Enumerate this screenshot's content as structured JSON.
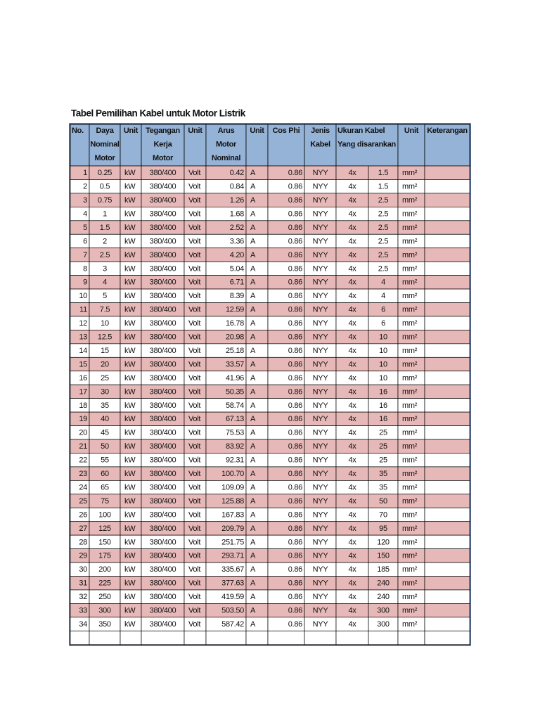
{
  "title": "Tabel Pemilihan Kabel untuk Motor Listrik",
  "headers": [
    [
      "No."
    ],
    [
      "Daya",
      "Nominal",
      "Motor"
    ],
    [
      "Unit"
    ],
    [
      "Tegangan",
      "Kerja",
      "Motor"
    ],
    [
      "Unit"
    ],
    [
      "Arus",
      "Motor",
      "Nominal"
    ],
    [
      "Unit"
    ],
    [
      "Cos Phi"
    ],
    [
      "Jenis",
      "Kabel"
    ],
    [
      "Ukuran Kabel",
      "Yang disarankan"
    ],
    [
      "Unit"
    ],
    [
      "Keterangan"
    ]
  ],
  "rows": [
    [
      "1",
      "0.25",
      "kW",
      "380/400",
      "Volt",
      "0.42",
      "A",
      "0.86",
      "NYY",
      "4x",
      "1.5",
      "mm²"
    ],
    [
      "2",
      "0.5",
      "kW",
      "380/400",
      "Volt",
      "0.84",
      "A",
      "0.86",
      "NYY",
      "4x",
      "1.5",
      "mm²"
    ],
    [
      "3",
      "0.75",
      "kW",
      "380/400",
      "Volt",
      "1.26",
      "A",
      "0.86",
      "NYY",
      "4x",
      "2.5",
      "mm²"
    ],
    [
      "4",
      "1",
      "kW",
      "380/400",
      "Volt",
      "1.68",
      "A",
      "0.86",
      "NYY",
      "4x",
      "2.5",
      "mm²"
    ],
    [
      "5",
      "1.5",
      "kW",
      "380/400",
      "Volt",
      "2.52",
      "A",
      "0.86",
      "NYY",
      "4x",
      "2.5",
      "mm²"
    ],
    [
      "6",
      "2",
      "kW",
      "380/400",
      "Volt",
      "3.36",
      "A",
      "0.86",
      "NYY",
      "4x",
      "2.5",
      "mm²"
    ],
    [
      "7",
      "2.5",
      "kW",
      "380/400",
      "Volt",
      "4.20",
      "A",
      "0.86",
      "NYY",
      "4x",
      "2.5",
      "mm²"
    ],
    [
      "8",
      "3",
      "kW",
      "380/400",
      "Volt",
      "5.04",
      "A",
      "0.86",
      "NYY",
      "4x",
      "2.5",
      "mm²"
    ],
    [
      "9",
      "4",
      "kW",
      "380/400",
      "Volt",
      "6.71",
      "A",
      "0.86",
      "NYY",
      "4x",
      "4",
      "mm²"
    ],
    [
      "10",
      "5",
      "kW",
      "380/400",
      "Volt",
      "8.39",
      "A",
      "0.86",
      "NYY",
      "4x",
      "4",
      "mm²"
    ],
    [
      "11",
      "7.5",
      "kW",
      "380/400",
      "Volt",
      "12.59",
      "A",
      "0.86",
      "NYY",
      "4x",
      "6",
      "mm²"
    ],
    [
      "12",
      "10",
      "kW",
      "380/400",
      "Volt",
      "16.78",
      "A",
      "0.86",
      "NYY",
      "4x",
      "6",
      "mm²"
    ],
    [
      "13",
      "12.5",
      "kW",
      "380/400",
      "Volt",
      "20.98",
      "A",
      "0.86",
      "NYY",
      "4x",
      "10",
      "mm²"
    ],
    [
      "14",
      "15",
      "kW",
      "380/400",
      "Volt",
      "25.18",
      "A",
      "0.86",
      "NYY",
      "4x",
      "10",
      "mm²"
    ],
    [
      "15",
      "20",
      "kW",
      "380/400",
      "Volt",
      "33.57",
      "A",
      "0.86",
      "NYY",
      "4x",
      "10",
      "mm²"
    ],
    [
      "16",
      "25",
      "kW",
      "380/400",
      "Volt",
      "41.96",
      "A",
      "0.86",
      "NYY",
      "4x",
      "10",
      "mm²"
    ],
    [
      "17",
      "30",
      "kW",
      "380/400",
      "Volt",
      "50.35",
      "A",
      "0.86",
      "NYY",
      "4x",
      "16",
      "mm²"
    ],
    [
      "18",
      "35",
      "kW",
      "380/400",
      "Volt",
      "58.74",
      "A",
      "0.86",
      "NYY",
      "4x",
      "16",
      "mm²"
    ],
    [
      "19",
      "40",
      "kW",
      "380/400",
      "Volt",
      "67.13",
      "A",
      "0.86",
      "NYY",
      "4x",
      "16",
      "mm²"
    ],
    [
      "20",
      "45",
      "kW",
      "380/400",
      "Volt",
      "75.53",
      "A",
      "0.86",
      "NYY",
      "4x",
      "25",
      "mm²"
    ],
    [
      "21",
      "50",
      "kW",
      "380/400",
      "Volt",
      "83.92",
      "A",
      "0.86",
      "NYY",
      "4x",
      "25",
      "mm²"
    ],
    [
      "22",
      "55",
      "kW",
      "380/400",
      "Volt",
      "92.31",
      "A",
      "0.86",
      "NYY",
      "4x",
      "25",
      "mm²"
    ],
    [
      "23",
      "60",
      "kW",
      "380/400",
      "Volt",
      "100.70",
      "A",
      "0.86",
      "NYY",
      "4x",
      "35",
      "mm²"
    ],
    [
      "24",
      "65",
      "kW",
      "380/400",
      "Volt",
      "109.09",
      "A",
      "0.86",
      "NYY",
      "4x",
      "35",
      "mm²"
    ],
    [
      "25",
      "75",
      "kW",
      "380/400",
      "Volt",
      "125.88",
      "A",
      "0.86",
      "NYY",
      "4x",
      "50",
      "mm²"
    ],
    [
      "26",
      "100",
      "kW",
      "380/400",
      "Volt",
      "167.83",
      "A",
      "0.86",
      "NYY",
      "4x",
      "70",
      "mm²"
    ],
    [
      "27",
      "125",
      "kW",
      "380/400",
      "Volt",
      "209.79",
      "A",
      "0.86",
      "NYY",
      "4x",
      "95",
      "mm²"
    ],
    [
      "28",
      "150",
      "kW",
      "380/400",
      "Volt",
      "251.75",
      "A",
      "0.86",
      "NYY",
      "4x",
      "120",
      "mm²"
    ],
    [
      "29",
      "175",
      "kW",
      "380/400",
      "Volt",
      "293.71",
      "A",
      "0.86",
      "NYY",
      "4x",
      "150",
      "mm²"
    ],
    [
      "30",
      "200",
      "kW",
      "380/400",
      "Volt",
      "335.67",
      "A",
      "0.86",
      "NYY",
      "4x",
      "185",
      "mm²"
    ],
    [
      "31",
      "225",
      "kW",
      "380/400",
      "Volt",
      "377.63",
      "A",
      "0.86",
      "NYY",
      "4x",
      "240",
      "mm²"
    ],
    [
      "32",
      "250",
      "kW",
      "380/400",
      "Volt",
      "419.59",
      "A",
      "0.86",
      "NYY",
      "4x",
      "240",
      "mm²"
    ],
    [
      "33",
      "300",
      "kW",
      "380/400",
      "Volt",
      "503.50",
      "A",
      "0.86",
      "NYY",
      "4x",
      "300",
      "mm²"
    ],
    [
      "34",
      "350",
      "kW",
      "380/400",
      "Volt",
      "587.42",
      "A",
      "0.86",
      "NYY",
      "4x",
      "300",
      "mm²"
    ]
  ]
}
